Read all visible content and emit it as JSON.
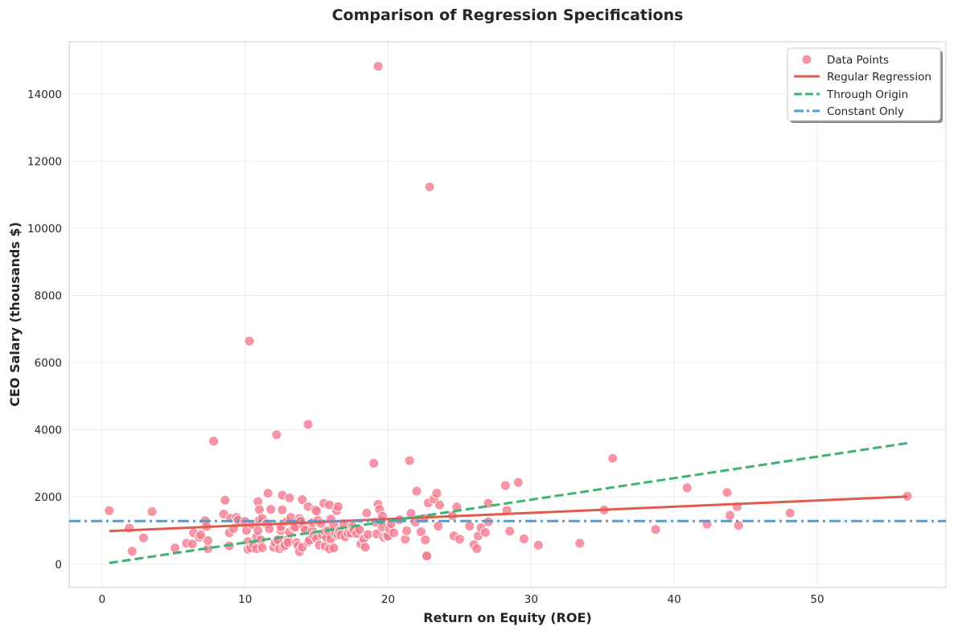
{
  "chart_data": {
    "type": "scatter",
    "title": "Comparison of Regression Specifications",
    "xlabel": "Return on Equity (ROE)",
    "ylabel": "CEO Salary (thousands $)",
    "xlim": [
      -2.3,
      59.0
    ],
    "ylim": [
      -700,
      15550
    ],
    "xticks": [
      0,
      10,
      20,
      30,
      40,
      50
    ],
    "yticks": [
      0,
      2000,
      4000,
      6000,
      8000,
      10000,
      12000,
      14000
    ],
    "grid": true,
    "legend_position": "top-right",
    "legend": [
      "Data Points",
      "Regular Regression",
      "Through Origin",
      "Constant Only"
    ],
    "colors": {
      "points": "#f37b8e",
      "regular": "#e05a4e",
      "origin": "#3cb371",
      "constant": "#4a9fd8"
    },
    "lines": {
      "regular_regression": {
        "x": [
          0.5,
          56.3
        ],
        "y": [
          980,
          2010
        ]
      },
      "through_origin": {
        "x": [
          0.5,
          56.3
        ],
        "y": [
          32,
          3600
        ]
      },
      "constant_only": {
        "y": 1281
      }
    },
    "points": [
      [
        0.5,
        1590
      ],
      [
        1.9,
        1070
      ],
      [
        2.1,
        380
      ],
      [
        2.9,
        780
      ],
      [
        3.5,
        1560
      ],
      [
        5.1,
        480
      ],
      [
        5.9,
        620
      ],
      [
        6.3,
        600
      ],
      [
        6.4,
        930
      ],
      [
        6.8,
        800
      ],
      [
        6.9,
        870
      ],
      [
        7.2,
        1290
      ],
      [
        7.3,
        1120
      ],
      [
        7.4,
        460
      ],
      [
        7.4,
        700
      ],
      [
        7.8,
        3660
      ],
      [
        8.5,
        1490
      ],
      [
        8.6,
        1900
      ],
      [
        8.9,
        930
      ],
      [
        8.9,
        540
      ],
      [
        9.0,
        1370
      ],
      [
        9.2,
        1060
      ],
      [
        9.4,
        1390
      ],
      [
        9.5,
        1310
      ],
      [
        10.0,
        1270
      ],
      [
        10.1,
        1000
      ],
      [
        10.2,
        670
      ],
      [
        10.2,
        440
      ],
      [
        10.3,
        6640
      ],
      [
        10.4,
        480
      ],
      [
        10.5,
        1180
      ],
      [
        10.6,
        580
      ],
      [
        10.8,
        820
      ],
      [
        10.8,
        460
      ],
      [
        10.9,
        1000
      ],
      [
        10.9,
        1860
      ],
      [
        11.0,
        1310
      ],
      [
        11.0,
        1620
      ],
      [
        11.1,
        720
      ],
      [
        11.2,
        1360
      ],
      [
        11.2,
        490
      ],
      [
        11.5,
        1200
      ],
      [
        11.6,
        2110
      ],
      [
        11.7,
        1050
      ],
      [
        11.8,
        1630
      ],
      [
        12.0,
        500
      ],
      [
        12.1,
        640
      ],
      [
        12.2,
        3850
      ],
      [
        12.3,
        720
      ],
      [
        12.4,
        460
      ],
      [
        12.5,
        1000
      ],
      [
        12.5,
        1110
      ],
      [
        12.6,
        2050
      ],
      [
        12.6,
        1610
      ],
      [
        12.7,
        520
      ],
      [
        12.8,
        560
      ],
      [
        12.9,
        1270
      ],
      [
        13.0,
        730
      ],
      [
        13.0,
        640
      ],
      [
        13.1,
        950
      ],
      [
        13.1,
        1970
      ],
      [
        13.2,
        1390
      ],
      [
        13.4,
        1100
      ],
      [
        13.5,
        1100
      ],
      [
        13.6,
        640
      ],
      [
        13.7,
        540
      ],
      [
        13.8,
        1360
      ],
      [
        13.8,
        370
      ],
      [
        13.9,
        1280
      ],
      [
        14.0,
        1920
      ],
      [
        14.0,
        500
      ],
      [
        14.1,
        1100
      ],
      [
        14.2,
        1010
      ],
      [
        14.4,
        4160
      ],
      [
        14.4,
        1710
      ],
      [
        14.4,
        660
      ],
      [
        14.5,
        710
      ],
      [
        14.7,
        1000
      ],
      [
        14.7,
        1230
      ],
      [
        14.8,
        850
      ],
      [
        14.9,
        1620
      ],
      [
        15.0,
        1580
      ],
      [
        15.0,
        760
      ],
      [
        15.1,
        1300
      ],
      [
        15.2,
        560
      ],
      [
        15.3,
        1210
      ],
      [
        15.4,
        870
      ],
      [
        15.5,
        1810
      ],
      [
        15.6,
        960
      ],
      [
        15.6,
        530
      ],
      [
        15.7,
        780
      ],
      [
        15.8,
        1000
      ],
      [
        15.9,
        1760
      ],
      [
        15.9,
        450
      ],
      [
        16.0,
        1340
      ],
      [
        16.0,
        750
      ],
      [
        16.2,
        1160
      ],
      [
        16.2,
        480
      ],
      [
        16.3,
        920
      ],
      [
        16.4,
        1590
      ],
      [
        16.5,
        1710
      ],
      [
        16.5,
        860
      ],
      [
        16.6,
        980
      ],
      [
        16.7,
        870
      ],
      [
        16.9,
        1200
      ],
      [
        17.0,
        810
      ],
      [
        17.2,
        920
      ],
      [
        17.4,
        920
      ],
      [
        17.5,
        1120
      ],
      [
        17.6,
        1010
      ],
      [
        17.8,
        910
      ],
      [
        18.0,
        1020
      ],
      [
        18.1,
        600
      ],
      [
        18.3,
        750
      ],
      [
        18.4,
        500
      ],
      [
        18.5,
        1520
      ],
      [
        18.6,
        880
      ],
      [
        19.0,
        3000
      ],
      [
        19.1,
        1250
      ],
      [
        19.2,
        900
      ],
      [
        19.3,
        1780
      ],
      [
        19.4,
        1630
      ],
      [
        19.5,
        1290
      ],
      [
        19.6,
        1100
      ],
      [
        19.6,
        1430
      ],
      [
        19.7,
        800
      ],
      [
        19.9,
        840
      ],
      [
        20.0,
        830
      ],
      [
        20.1,
        1050
      ],
      [
        20.2,
        1200
      ],
      [
        20.4,
        930
      ],
      [
        20.8,
        1320
      ],
      [
        21.2,
        740
      ],
      [
        21.3,
        990
      ],
      [
        21.5,
        3080
      ],
      [
        21.6,
        1510
      ],
      [
        21.9,
        1250
      ],
      [
        22.0,
        2170
      ],
      [
        22.3,
        960
      ],
      [
        22.5,
        1360
      ],
      [
        22.6,
        720
      ],
      [
        22.7,
        250
      ],
      [
        22.7,
        240
      ],
      [
        22.8,
        1820
      ],
      [
        22.9,
        11230
      ],
      [
        23.2,
        1930
      ],
      [
        23.4,
        2110
      ],
      [
        23.5,
        1130
      ],
      [
        23.6,
        1760
      ],
      [
        24.5,
        1440
      ],
      [
        24.6,
        840
      ],
      [
        24.8,
        1700
      ],
      [
        25.0,
        740
      ],
      [
        25.7,
        1130
      ],
      [
        26.0,
        580
      ],
      [
        26.2,
        460
      ],
      [
        26.3,
        840
      ],
      [
        26.5,
        1080
      ],
      [
        26.8,
        940
      ],
      [
        27.0,
        1810
      ],
      [
        27.0,
        1260
      ],
      [
        28.2,
        2340
      ],
      [
        28.3,
        1600
      ],
      [
        28.5,
        980
      ],
      [
        29.1,
        2430
      ],
      [
        29.5,
        750
      ],
      [
        30.5,
        560
      ],
      [
        33.4,
        620
      ],
      [
        35.1,
        1610
      ],
      [
        35.7,
        3150
      ],
      [
        38.7,
        1030
      ],
      [
        40.9,
        2270
      ],
      [
        42.3,
        1190
      ],
      [
        43.7,
        2130
      ],
      [
        43.9,
        1450
      ],
      [
        44.4,
        1710
      ],
      [
        44.5,
        1150
      ],
      [
        48.1,
        1520
      ],
      [
        56.3,
        2020
      ],
      [
        19.3,
        14820
      ]
    ]
  }
}
